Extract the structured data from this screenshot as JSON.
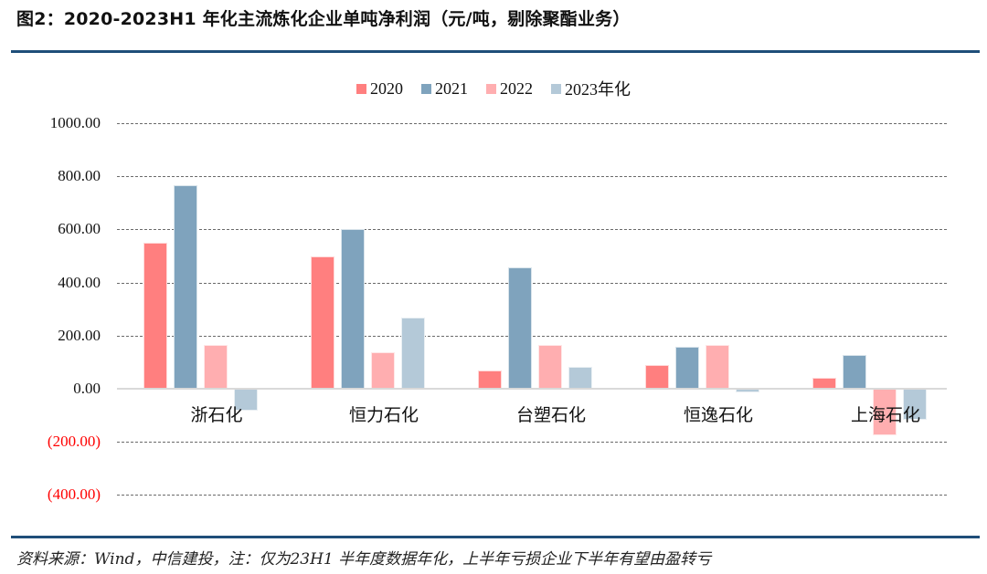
{
  "header": {
    "title": "图2：2020-2023H1 年化主流炼化企业单吨净利润（元/吨，剔除聚酯业务）"
  },
  "footer": {
    "source": "资料来源：Wind，中信建投，注：仅为23H1 半年度数据年化，上半年亏损企业下半年有望由盈转亏"
  },
  "colors": {
    "2020": "#ff7f7f",
    "2021": "#7fa3bd",
    "2022": "#ffaeb0",
    "2023年化": "#b4c9d8",
    "negative_label": "#ff0000",
    "rule": "#1f4e79"
  },
  "chart_data": {
    "type": "bar",
    "title": "2020-2023H1 年化主流炼化企业单吨净利润（元/吨，剔除聚酯业务）",
    "xlabel": "",
    "ylabel": "元/吨",
    "ylim": [
      -400,
      1000
    ],
    "yticks": [
      "1000.00",
      "800.00",
      "600.00",
      "400.00",
      "200.00",
      "0.00",
      "(200.00)",
      "(400.00)"
    ],
    "ytick_values": [
      1000,
      800,
      600,
      400,
      200,
      0,
      -200,
      -400
    ],
    "grid": true,
    "legend_position": "top",
    "categories": [
      "浙石化",
      "恒力石化",
      "台塑石化",
      "恒逸石化",
      "上海石化"
    ],
    "series": [
      {
        "name": "2020",
        "values": [
          550,
          498,
          69,
          89,
          41
        ]
      },
      {
        "name": "2021",
        "values": [
          766,
          601,
          457,
          158,
          127
        ]
      },
      {
        "name": "2022",
        "values": [
          165,
          137,
          165,
          165,
          -175
        ]
      },
      {
        "name": "2023年化",
        "values": [
          -82,
          268,
          82,
          -14,
          -117
        ]
      }
    ]
  }
}
